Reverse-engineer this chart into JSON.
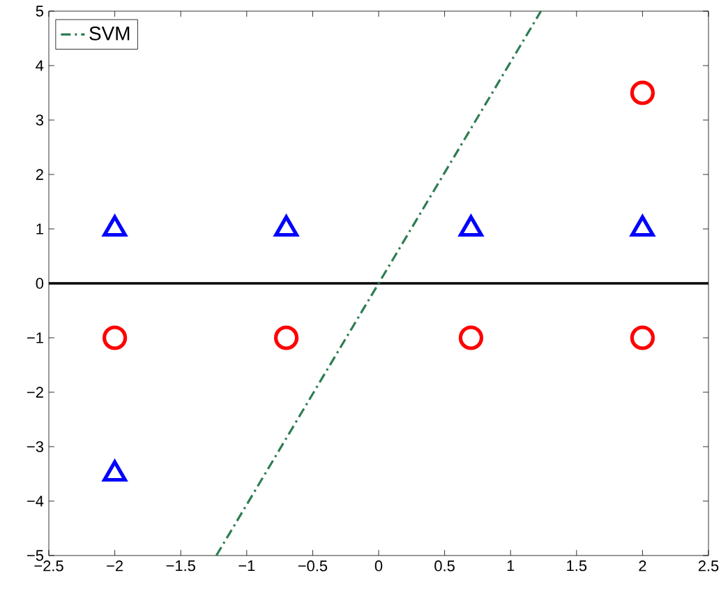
{
  "chart_data": {
    "type": "scatter",
    "xlim": [
      -2.5,
      2.5
    ],
    "ylim": [
      -5,
      5
    ],
    "xticks": [
      {
        "value": -2.5,
        "label": "−2.5"
      },
      {
        "value": -2,
        "label": "−2"
      },
      {
        "value": -1.5,
        "label": "−1.5"
      },
      {
        "value": -1,
        "label": "−1"
      },
      {
        "value": -0.5,
        "label": "−0.5"
      },
      0,
      0.5,
      1,
      1.5,
      2,
      2.5
    ],
    "yticks": [
      {
        "value": -5,
        "label": "−5"
      },
      {
        "value": -4,
        "label": "−4"
      },
      {
        "value": -3,
        "label": "−3"
      },
      {
        "value": -2,
        "label": "−2"
      },
      {
        "value": -1,
        "label": "−1"
      },
      0,
      1,
      2,
      3,
      4,
      5
    ],
    "grid": false,
    "legend": "top left",
    "ref_lines": [
      {
        "axis": "y",
        "value": 0,
        "color": "#000000",
        "line_style": "solid"
      }
    ],
    "series": [
      {
        "color": "#0000ff",
        "marker": "triangle",
        "x": [
          -2,
          -0.7,
          0.7,
          2,
          -2
        ],
        "values": [
          1,
          1,
          1,
          1,
          -3.5
        ]
      },
      {
        "color": "#ff0000",
        "marker": "circle",
        "x": [
          -2,
          -0.7,
          0.7,
          2,
          2
        ],
        "values": [
          -1,
          -1,
          -1,
          -1,
          3.5
        ]
      },
      {
        "type": "line",
        "name": "SVM",
        "color": "#2e7d52",
        "marker": "none",
        "line_style": "dashdotted",
        "x": [
          -1.23,
          1.23
        ],
        "values": [
          -5,
          5
        ]
      }
    ]
  }
}
